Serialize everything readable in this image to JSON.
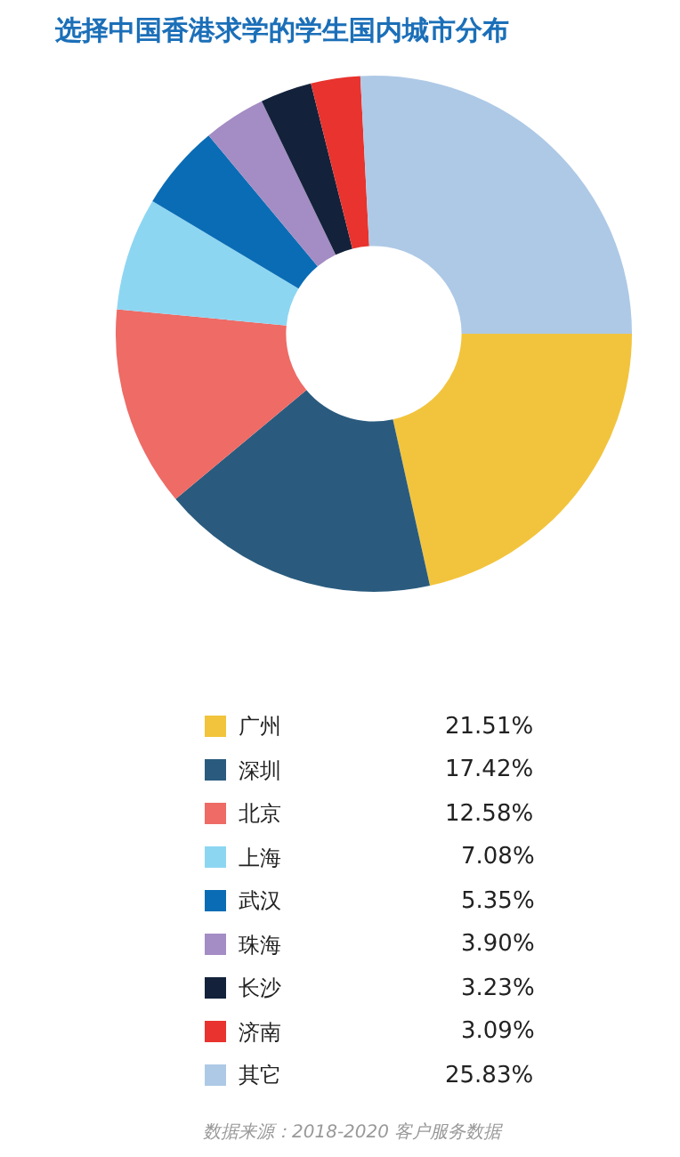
{
  "chart_data": {
    "type": "donut",
    "title": "选择中国香港求学的学生国内城市分布",
    "categories": [
      "广州",
      "深圳",
      "北京",
      "上海",
      "武汉",
      "珠海",
      "长沙",
      "济南",
      "其它"
    ],
    "values": [
      21.51,
      17.42,
      12.58,
      7.08,
      5.35,
      3.9,
      3.23,
      3.09,
      25.83
    ],
    "colors": [
      "#f2c43d",
      "#2a5b7e",
      "#ee6b66",
      "#8dd6f2",
      "#0a6cb5",
      "#a48cc4",
      "#13223a",
      "#e8332e",
      "#aec9e6"
    ],
    "value_labels": [
      "21.51%",
      "17.42%",
      "12.58%",
      "7.08%",
      "5.35%",
      "3.90%",
      "3.23%",
      "3.09%",
      "25.83%"
    ],
    "legend": "bottom",
    "annotations": [
      "数据来源：2018-2020 客户服务数据"
    ]
  }
}
